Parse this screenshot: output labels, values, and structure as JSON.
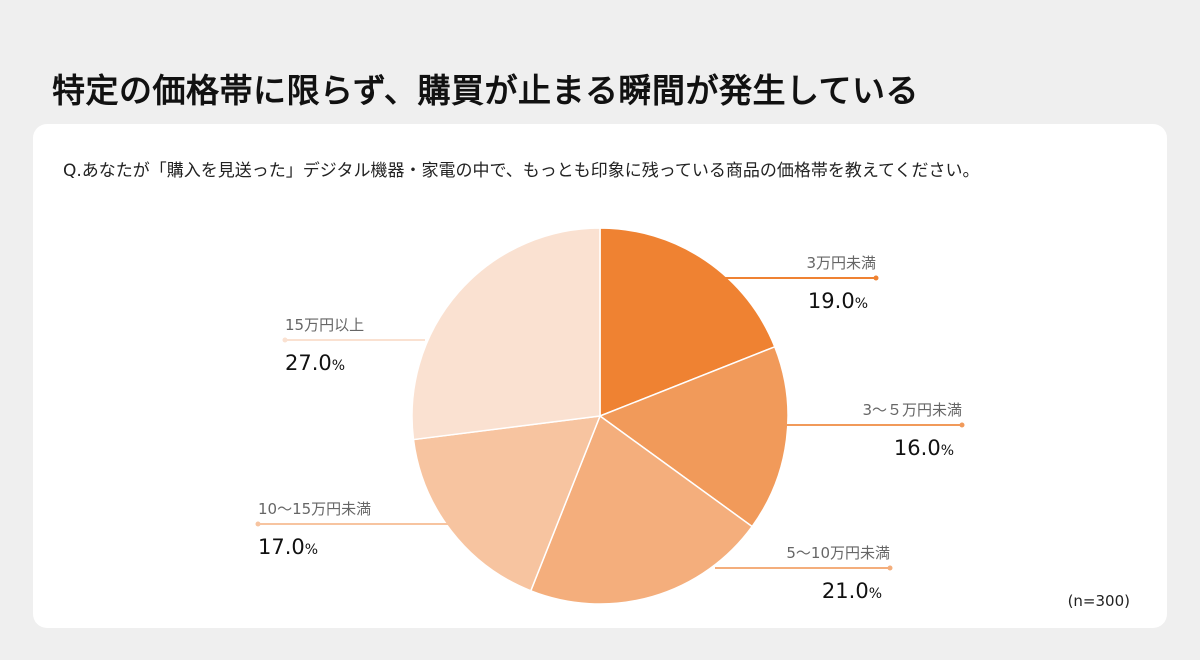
{
  "page_title": "特定の価格帯に限らず、購買が止まる瞬間が発生している",
  "question": "Q.あなたが「購入を見送った」デジタル機器・家電の中で、もっとも印象に残っている商品の価格帯を教えてください。",
  "sample_note": "(n=300)",
  "chart_data": {
    "type": "pie",
    "title": "",
    "start": "top",
    "direction": "clockwise",
    "unit": "%",
    "slices": [
      {
        "label": "3万円未満",
        "value": 19.0,
        "display": "19.0",
        "color": "#EF8232"
      },
      {
        "label": "3～５万円未満",
        "value": 16.0,
        "display": "16.0",
        "color": "#F19A5A"
      },
      {
        "label": "5～10万円未満",
        "value": 21.0,
        "display": "21.0",
        "color": "#F4AE7C"
      },
      {
        "label": "10～15万円未満",
        "value": 17.0,
        "display": "17.0",
        "color": "#F7C4A0"
      },
      {
        "label": "15万円以上",
        "value": 27.0,
        "display": "27.0",
        "color": "#FAE1D1"
      }
    ]
  }
}
